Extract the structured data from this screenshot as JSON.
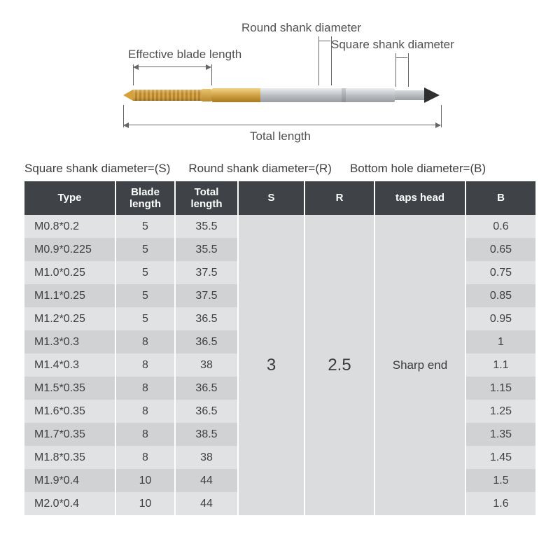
{
  "diagram": {
    "labels": {
      "round_shank": "Round shank diameter",
      "square_shank": "Square shank diameter",
      "effective_blade": "Effective blade length",
      "total_length": "Total length"
    },
    "colors": {
      "gold": "#d4a13b",
      "gold_light": "#f2d388",
      "steel_light": "#eceef0",
      "steel_dark": "#9a9ea2",
      "cone": "#2f2f2f",
      "line": "#666666"
    }
  },
  "legend": {
    "s": "Square shank diameter=(S)",
    "r": "Round shank diameter=(R)",
    "b": "Bottom hole diameter=(B)"
  },
  "table": {
    "header_bg": "#3f4347",
    "header_fg": "#ffffff",
    "row_odd_bg": "#e0e2e4",
    "row_even_bg": "#d0d2d4",
    "merged_bg": "#dadcde",
    "columns": [
      "Type",
      "Blade length",
      "Total length",
      "S",
      "R",
      "taps head",
      "B"
    ],
    "col_keys": [
      "type",
      "blade",
      "total",
      "s",
      "r",
      "head",
      "b"
    ],
    "merged": {
      "s": "3",
      "r": "2.5",
      "head": "Sharp end"
    },
    "rows": [
      {
        "type": "M0.8*0.2",
        "blade": "5",
        "total": "35.5",
        "b": "0.6"
      },
      {
        "type": "M0.9*0.225",
        "blade": "5",
        "total": "35.5",
        "b": "0.65"
      },
      {
        "type": "M1.0*0.25",
        "blade": "5",
        "total": "37.5",
        "b": "0.75"
      },
      {
        "type": "M1.1*0.25",
        "blade": "5",
        "total": "37.5",
        "b": "0.85"
      },
      {
        "type": "M1.2*0.25",
        "blade": "5",
        "total": "36.5",
        "b": "0.95"
      },
      {
        "type": "M1.3*0.3",
        "blade": "8",
        "total": "36.5",
        "b": "1"
      },
      {
        "type": "M1.4*0.3",
        "blade": "8",
        "total": "38",
        "b": "1.1"
      },
      {
        "type": "M1.5*0.35",
        "blade": "8",
        "total": "36.5",
        "b": "1.15"
      },
      {
        "type": "M1.6*0.35",
        "blade": "8",
        "total": "36.5",
        "b": "1.25"
      },
      {
        "type": "M1.7*0.35",
        "blade": "8",
        "total": "38.5",
        "b": "1.35"
      },
      {
        "type": "M1.8*0.35",
        "blade": "8",
        "total": "38",
        "b": "1.45"
      },
      {
        "type": "M1.9*0.4",
        "blade": "10",
        "total": "44",
        "b": "1.5"
      },
      {
        "type": "M2.0*0.4",
        "blade": "10",
        "total": "44",
        "b": "1.6"
      }
    ]
  }
}
